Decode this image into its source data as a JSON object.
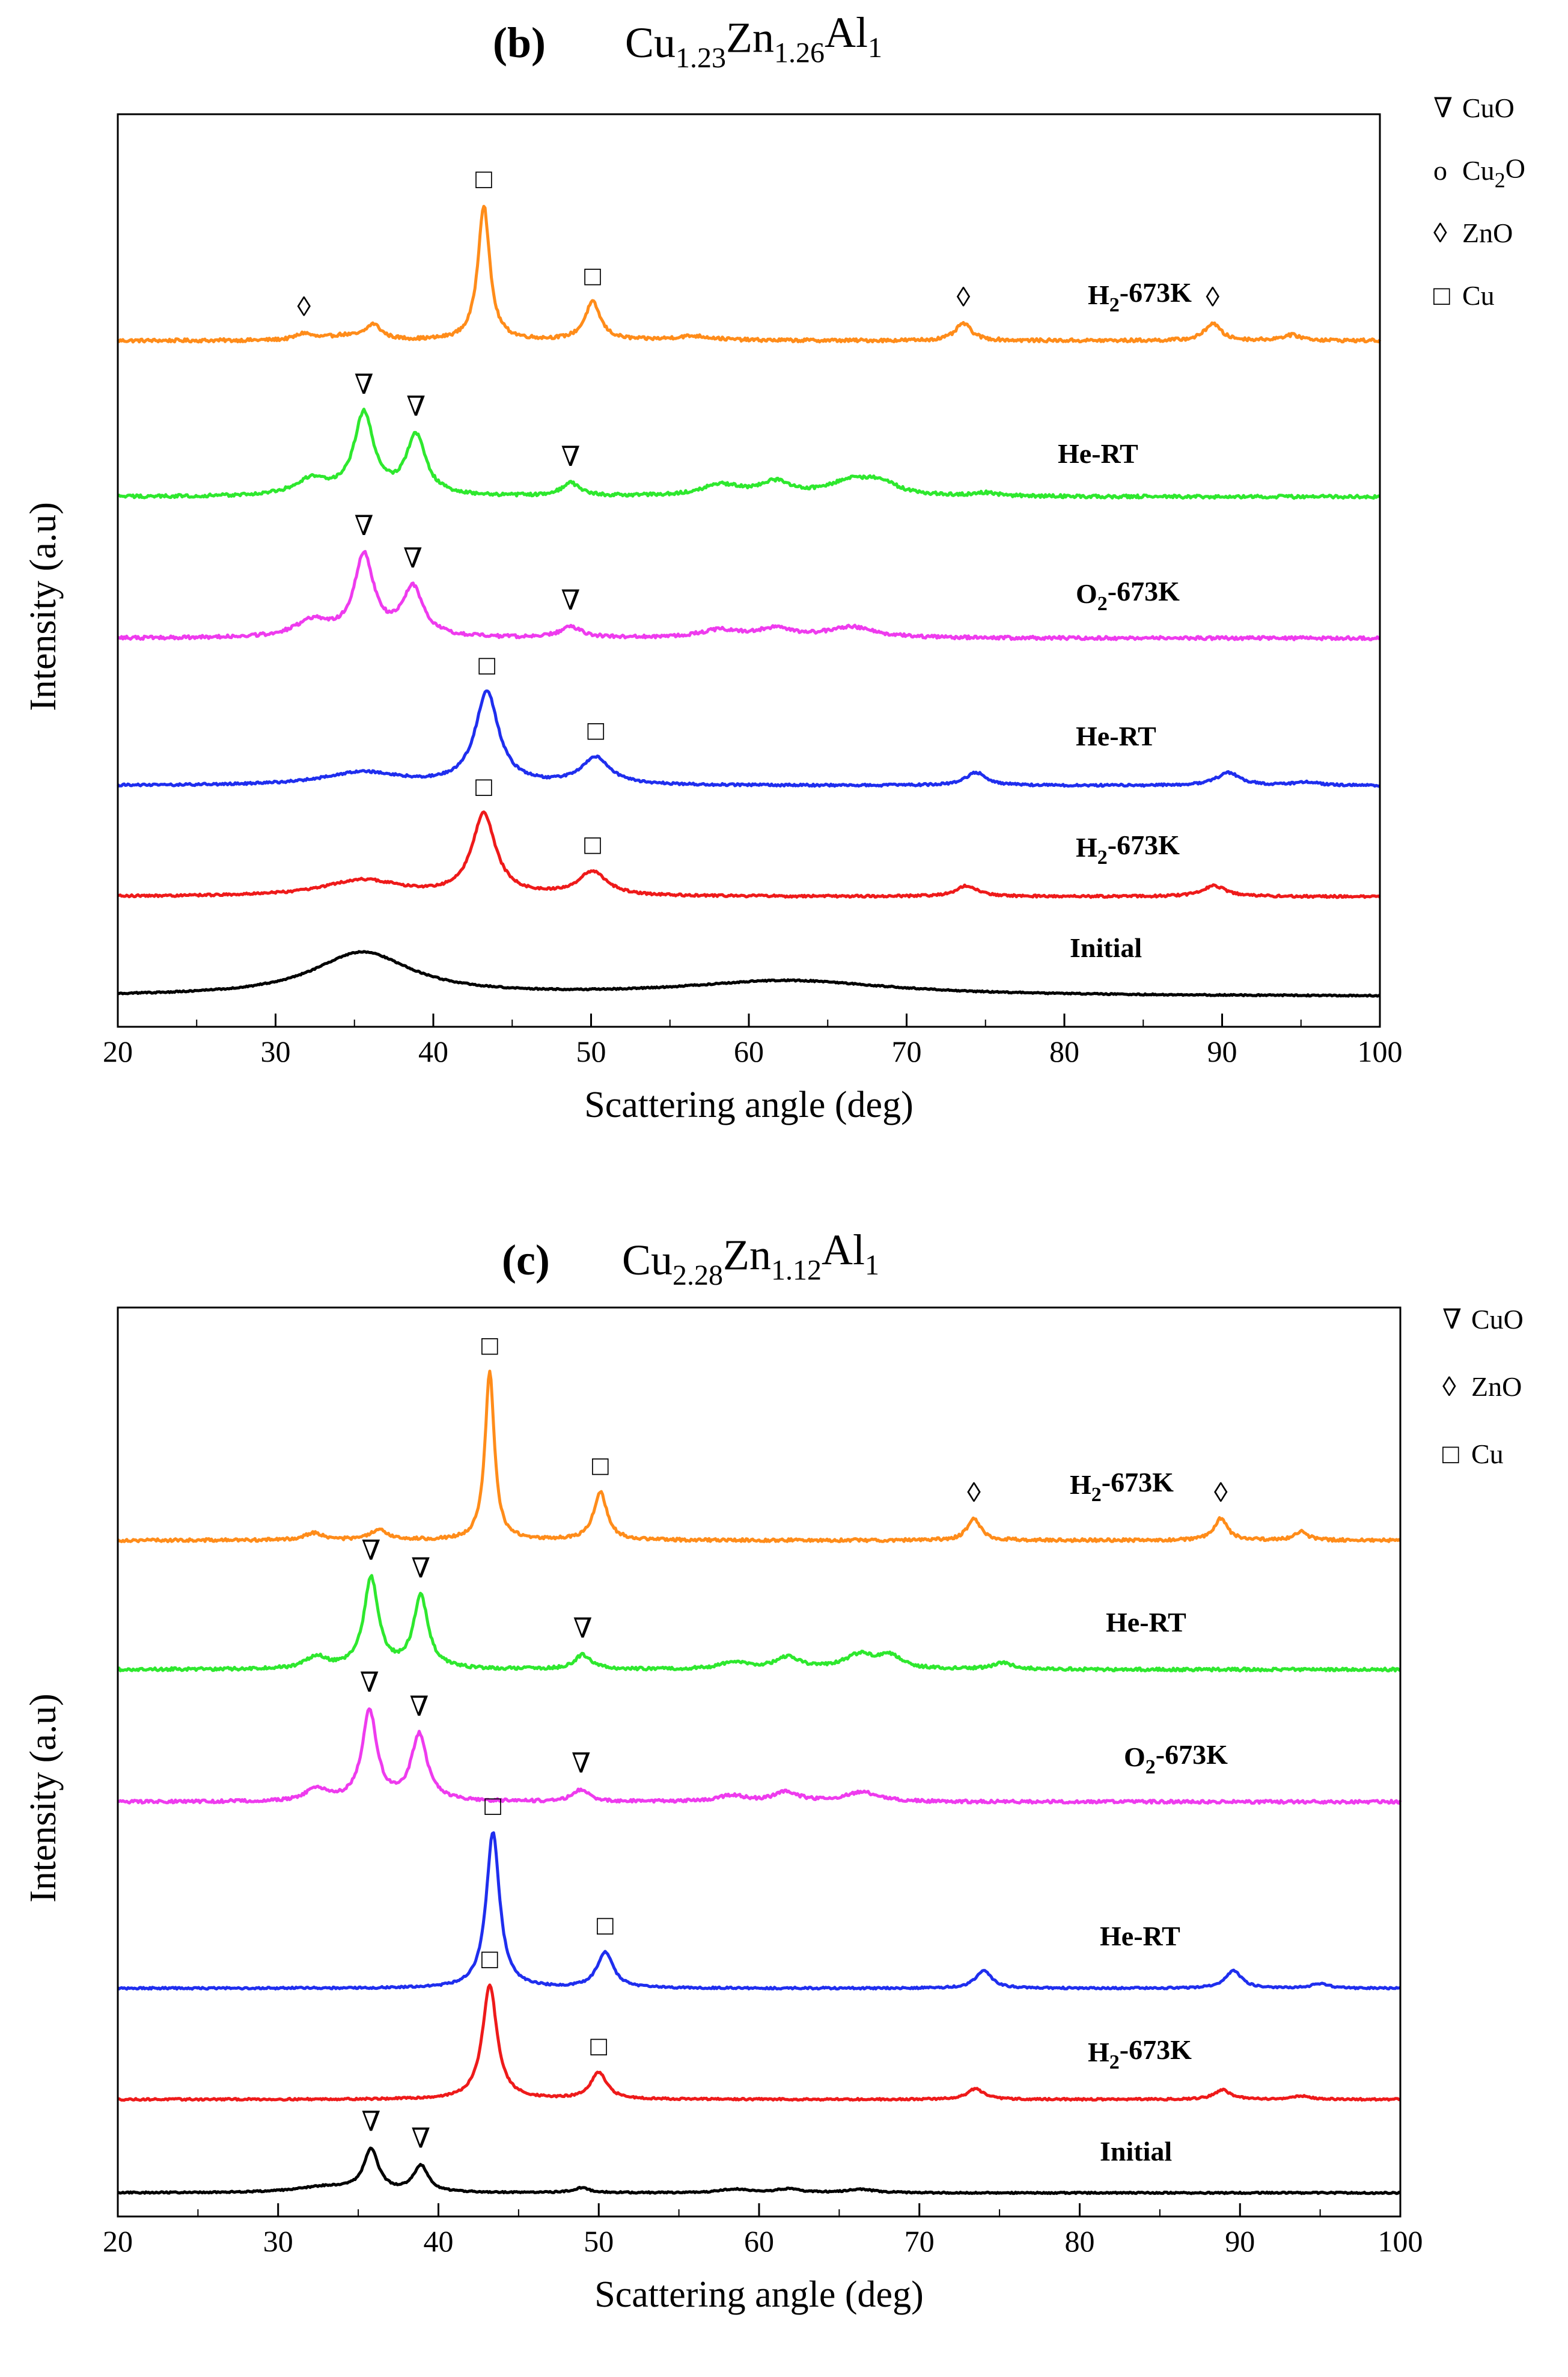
{
  "figure": {
    "panels": [
      {
        "id": "b",
        "title": {
          "tag": "(b)",
          "parts": [
            {
              "t": "Cu",
              "s": "1.23"
            },
            {
              "t": "Zn",
              "s": "1.26"
            },
            {
              "t": "Al",
              "s": "1"
            }
          ]
        },
        "legend": [
          {
            "symbol": "∇",
            "parts": [
              {
                "t": "CuO",
                "s": ""
              }
            ]
          },
          {
            "symbol": "o",
            "parts": [
              {
                "t": "Cu",
                "s": ""
              },
              {
                "t": "",
                "s": "2"
              },
              {
                "t": "O",
                "s": ""
              }
            ]
          },
          {
            "symbol": "◊",
            "parts": [
              {
                "t": "ZnO",
                "s": ""
              }
            ]
          },
          {
            "symbol": "□",
            "parts": [
              {
                "t": "Cu",
                "s": ""
              }
            ]
          }
        ],
        "trace_labels": [
          {
            "parts": [
              {
                "t": "H",
                "s": ""
              },
              {
                "t": "",
                "s": "2"
              },
              {
                "t": "-673K",
                "s": ""
              }
            ]
          },
          {
            "parts": [
              {
                "t": "He-RT",
                "s": ""
              }
            ]
          },
          {
            "parts": [
              {
                "t": "O",
                "s": ""
              },
              {
                "t": "",
                "s": "2"
              },
              {
                "t": "-673K",
                "s": ""
              }
            ]
          },
          {
            "parts": [
              {
                "t": "He-RT",
                "s": ""
              }
            ]
          },
          {
            "parts": [
              {
                "t": "H",
                "s": ""
              },
              {
                "t": "",
                "s": "2"
              },
              {
                "t": "-673K",
                "s": ""
              }
            ]
          },
          {
            "parts": [
              {
                "t": "Initial",
                "s": ""
              }
            ]
          }
        ]
      },
      {
        "id": "c",
        "title": {
          "tag": "(c)",
          "parts": [
            {
              "t": "Cu",
              "s": "2.28"
            },
            {
              "t": "Zn",
              "s": "1.12"
            },
            {
              "t": "Al",
              "s": "1"
            }
          ]
        },
        "legend": [
          {
            "symbol": "∇",
            "parts": [
              {
                "t": "CuO",
                "s": ""
              }
            ]
          },
          {
            "symbol": "◊",
            "parts": [
              {
                "t": "ZnO",
                "s": ""
              }
            ]
          },
          {
            "symbol": "□",
            "parts": [
              {
                "t": "Cu",
                "s": ""
              }
            ]
          }
        ],
        "trace_labels": [
          {
            "parts": [
              {
                "t": "H",
                "s": ""
              },
              {
                "t": "",
                "s": "2"
              },
              {
                "t": "-673K",
                "s": ""
              }
            ]
          },
          {
            "parts": [
              {
                "t": "He-RT",
                "s": ""
              }
            ]
          },
          {
            "parts": [
              {
                "t": "O",
                "s": ""
              },
              {
                "t": "",
                "s": "2"
              },
              {
                "t": "-673K",
                "s": ""
              }
            ]
          },
          {
            "parts": [
              {
                "t": "He-RT",
                "s": ""
              }
            ]
          },
          {
            "parts": [
              {
                "t": "H",
                "s": ""
              },
              {
                "t": "",
                "s": "2"
              },
              {
                "t": "-673K",
                "s": ""
              }
            ]
          },
          {
            "parts": [
              {
                "t": "Initial",
                "s": ""
              }
            ]
          }
        ]
      }
    ]
  },
  "chart_data": [
    {
      "type": "line",
      "title": "(b) Cu1.23Zn1.26Al1",
      "xlabel": "Scattering angle (deg)",
      "ylabel": "Intensity (a.u)",
      "xlim": [
        20,
        100
      ],
      "xticks": [
        20,
        30,
        40,
        50,
        60,
        70,
        80,
        90,
        100
      ],
      "y_ticks_shown": false,
      "grid": false,
      "legend_position": "top-right, outside plot",
      "series": [
        {
          "name": "H2-673K",
          "color": "#FF8C1A",
          "baseline": 0.9,
          "noise": 0.03,
          "bumps": [
            [
              31.8,
              0.06,
              0.6
            ],
            [
              34.2,
              0.04,
              1.2
            ],
            [
              36.2,
              0.14,
              0.6
            ],
            [
              43.2,
              1.25,
              0.45
            ],
            [
              50.1,
              0.35,
              0.6
            ],
            [
              56.5,
              0.04,
              1.5
            ],
            [
              73.6,
              0.16,
              0.6
            ],
            [
              89.4,
              0.16,
              0.6
            ],
            [
              94.4,
              0.05,
              0.8
            ]
          ],
          "markers": [
            {
              "x": 31.8,
              "sym": "◊"
            },
            {
              "x": 43.2,
              "sym": "□"
            },
            {
              "x": 50.1,
              "sym": "□"
            },
            {
              "x": 73.6,
              "sym": "◊"
            },
            {
              "x": 89.4,
              "sym": "◊"
            }
          ]
        },
        {
          "name": "He-RT",
          "color": "#2EE82E",
          "baseline": 0.95,
          "noise": 0.03,
          "bumps": [
            [
              32.3,
              0.15,
              1.3
            ],
            [
              35.6,
              0.75,
              0.75
            ],
            [
              38.9,
              0.55,
              0.75
            ],
            [
              48.7,
              0.12,
              0.7
            ],
            [
              58.2,
              0.1,
              1.6
            ],
            [
              61.7,
              0.12,
              1.2
            ],
            [
              66.5,
              0.14,
              1.8
            ],
            [
              68.4,
              0.1,
              1.2
            ],
            [
              75,
              0.03,
              1
            ]
          ],
          "markers": [
            {
              "x": 35.6,
              "sym": "∇"
            },
            {
              "x": 38.9,
              "sym": "∇"
            },
            {
              "x": 48.7,
              "sym": "∇"
            }
          ]
        },
        {
          "name": "O2-673K",
          "color": "#EE3BEE",
          "baseline": 0.9,
          "noise": 0.03,
          "bumps": [
            [
              32.3,
              0.15,
              1.3
            ],
            [
              35.6,
              0.75,
              0.75
            ],
            [
              38.7,
              0.45,
              0.8
            ],
            [
              48.7,
              0.1,
              0.8
            ],
            [
              58.2,
              0.07,
              1.6
            ],
            [
              61.7,
              0.08,
              1.3
            ],
            [
              66.5,
              0.1,
              1.8
            ]
          ],
          "markers": [
            {
              "x": 35.6,
              "sym": "∇"
            },
            {
              "x": 38.7,
              "sym": "∇"
            },
            {
              "x": 48.7,
              "sym": "∇"
            }
          ]
        },
        {
          "name": "He-RT",
          "color": "#1F2EEE",
          "baseline": 0.85,
          "noise": 0.02,
          "bumps": [
            [
              35.5,
              0.12,
              3
            ],
            [
              43.4,
              0.85,
              0.9
            ],
            [
              50.3,
              0.25,
              1.1
            ],
            [
              74.4,
              0.12,
              0.8
            ],
            [
              90.4,
              0.12,
              0.9
            ],
            [
              95.3,
              0.03,
              1
            ]
          ],
          "markers": [
            {
              "x": 43.4,
              "sym": "□"
            },
            {
              "x": 50.3,
              "sym": "□"
            }
          ]
        },
        {
          "name": "H2-673K",
          "color": "#EE1A1A",
          "baseline": 0.95,
          "noise": 0.02,
          "bumps": [
            [
              35.5,
              0.15,
              3
            ],
            [
              43.2,
              0.75,
              0.9
            ],
            [
              50.1,
              0.22,
              1.1
            ],
            [
              73.8,
              0.1,
              0.8
            ],
            [
              89.5,
              0.1,
              0.9
            ]
          ],
          "markers": [
            {
              "x": 43.2,
              "sym": "□"
            },
            {
              "x": 50.1,
              "sym": "□"
            }
          ]
        },
        {
          "name": "Initial",
          "color": "#000000",
          "baseline": 0.72,
          "noise": 0.012,
          "bumps": [
            [
              35.5,
              0.4,
              3.8
            ],
            [
              62.5,
              0.14,
              8
            ]
          ],
          "markers": []
        }
      ]
    },
    {
      "type": "line",
      "title": "(c) Cu2.28Zn1.12Al1",
      "xlabel": "Scattering angle (deg)",
      "ylabel": "Intensity (a.u)",
      "xlim": [
        20,
        100
      ],
      "xticks": [
        20,
        30,
        40,
        50,
        60,
        70,
        80,
        90,
        100
      ],
      "y_ticks_shown": false,
      "grid": false,
      "legend_position": "top-right, outside plot",
      "series": [
        {
          "name": "H2-673K",
          "color": "#FF8C1A",
          "baseline": 0.68,
          "noise": 0.025,
          "bumps": [
            [
              32.2,
              0.06,
              0.7
            ],
            [
              36.3,
              0.08,
              0.7
            ],
            [
              43.2,
              1.4,
              0.35
            ],
            [
              50.1,
              0.4,
              0.5
            ],
            [
              73.4,
              0.18,
              0.5
            ],
            [
              88.8,
              0.18,
              0.5
            ],
            [
              93.8,
              0.07,
              0.5
            ]
          ],
          "markers": [
            {
              "x": 43.2,
              "sym": "□"
            },
            {
              "x": 50.1,
              "sym": "□"
            },
            {
              "x": 73.4,
              "sym": "◊"
            },
            {
              "x": 88.8,
              "sym": "◊"
            }
          ]
        },
        {
          "name": "He-RT",
          "color": "#2EE82E",
          "baseline": 0.68,
          "noise": 0.025,
          "bumps": [
            [
              32.4,
              0.1,
              0.8
            ],
            [
              35.8,
              0.75,
              0.55
            ],
            [
              38.9,
              0.6,
              0.55
            ],
            [
              49,
              0.12,
              0.6
            ],
            [
              58.5,
              0.06,
              1
            ],
            [
              61.8,
              0.1,
              0.9
            ],
            [
              66.3,
              0.12,
              1.2
            ],
            [
              68.2,
              0.1,
              0.8
            ],
            [
              75.2,
              0.05,
              0.8
            ]
          ],
          "markers": [
            {
              "x": 35.8,
              "sym": "∇"
            },
            {
              "x": 38.9,
              "sym": "∇"
            },
            {
              "x": 49,
              "sym": "∇"
            }
          ]
        },
        {
          "name": "O2-673K",
          "color": "#EE3BEE",
          "baseline": 0.68,
          "noise": 0.025,
          "bumps": [
            [
              32.4,
              0.1,
              0.8
            ],
            [
              35.7,
              0.75,
              0.55
            ],
            [
              38.8,
              0.55,
              0.6
            ],
            [
              48.9,
              0.1,
              0.6
            ],
            [
              58.3,
              0.05,
              1
            ],
            [
              61.7,
              0.08,
              0.9
            ],
            [
              66.4,
              0.08,
              1.2
            ]
          ],
          "markers": [
            {
              "x": 35.7,
              "sym": "∇"
            },
            {
              "x": 38.8,
              "sym": "∇"
            },
            {
              "x": 48.9,
              "sym": "∇"
            }
          ]
        },
        {
          "name": "He-RT",
          "color": "#1F2EEE",
          "baseline": 0.62,
          "noise": 0.015,
          "bumps": [
            [
              43.4,
              1.3,
              0.5
            ],
            [
              50.4,
              0.3,
              0.6
            ],
            [
              74,
              0.15,
              0.6
            ],
            [
              89.6,
              0.15,
              0.6
            ],
            [
              95,
              0.04,
              0.6
            ]
          ],
          "markers": [
            {
              "x": 43.4,
              "sym": "□"
            },
            {
              "x": 50.4,
              "sym": "□"
            }
          ]
        },
        {
          "name": "H2-673K",
          "color": "#EE1A1A",
          "baseline": 0.68,
          "noise": 0.015,
          "bumps": [
            [
              43.2,
              0.95,
              0.55
            ],
            [
              50,
              0.22,
              0.6
            ],
            [
              73.5,
              0.09,
              0.6
            ],
            [
              88.9,
              0.08,
              0.6
            ],
            [
              93.8,
              0.03,
              0.6
            ]
          ],
          "markers": [
            {
              "x": 43.2,
              "sym": "□"
            },
            {
              "x": 50,
              "sym": "□"
            }
          ]
        },
        {
          "name": "Initial",
          "color": "#000000",
          "baseline": 0.56,
          "noise": 0.012,
          "bumps": [
            [
              33,
              0.05,
              2.2
            ],
            [
              35.8,
              0.35,
              0.55
            ],
            [
              38.9,
              0.22,
              0.55
            ],
            [
              48.9,
              0.04,
              0.6
            ],
            [
              58.5,
              0.03,
              1
            ],
            [
              61.8,
              0.03,
              1
            ],
            [
              66.3,
              0.03,
              1
            ]
          ],
          "markers": [
            {
              "x": 35.8,
              "sym": "∇"
            },
            {
              "x": 38.9,
              "sym": "∇"
            }
          ]
        }
      ]
    }
  ]
}
